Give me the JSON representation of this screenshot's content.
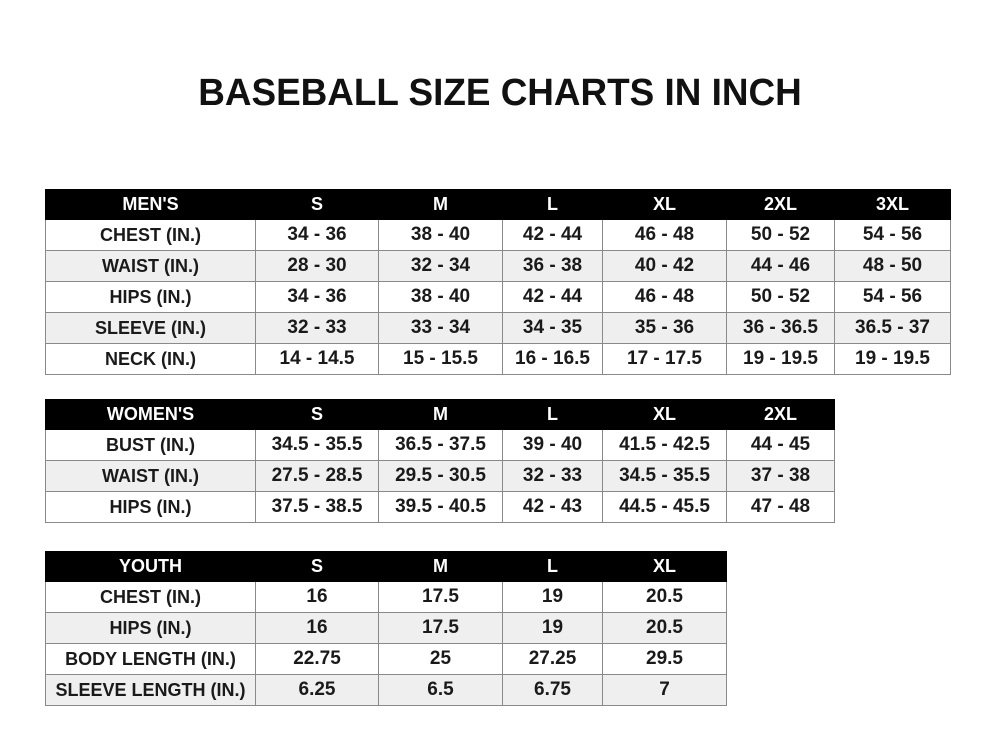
{
  "title": "BASEBALL SIZE CHARTS IN INCH",
  "tables": [
    {
      "id": "mens",
      "header": [
        "MEN'S",
        "S",
        "M",
        "L",
        "XL",
        "2XL",
        "3XL"
      ],
      "rows": [
        [
          "CHEST (IN.)",
          "34 - 36",
          "38 - 40",
          "42 - 44",
          "46 - 48",
          "50 - 52",
          "54 - 56"
        ],
        [
          "WAIST (IN.)",
          "28 - 30",
          "32 - 34",
          "36 - 38",
          "40 - 42",
          "44 - 46",
          "48 - 50"
        ],
        [
          "HIPS (IN.)",
          "34 - 36",
          "38 - 40",
          "42 - 44",
          "46 - 48",
          "50 - 52",
          "54 - 56"
        ],
        [
          "SLEEVE (IN.)",
          "32 - 33",
          "33 - 34",
          "34 - 35",
          "35 - 36",
          "36 - 36.5",
          "36.5 - 37"
        ],
        [
          "NECK (IN.)",
          "14 - 14.5",
          "15 - 15.5",
          "16 - 16.5",
          "17 - 17.5",
          "19 - 19.5",
          "19 - 19.5"
        ]
      ]
    },
    {
      "id": "womens",
      "header": [
        "WOMEN'S",
        "S",
        "M",
        "L",
        "XL",
        "2XL"
      ],
      "rows": [
        [
          "BUST (IN.)",
          "34.5 - 35.5",
          "36.5 - 37.5",
          "39 - 40",
          "41.5 - 42.5",
          "44 - 45"
        ],
        [
          "WAIST (IN.)",
          "27.5 - 28.5",
          "29.5 - 30.5",
          "32 - 33",
          "34.5 - 35.5",
          "37 - 38"
        ],
        [
          "HIPS (IN.)",
          "37.5 - 38.5",
          "39.5 - 40.5",
          "42 - 43",
          "44.5 - 45.5",
          "47 - 48"
        ]
      ]
    },
    {
      "id": "youth",
      "header": [
        "YOUTH",
        "S",
        "M",
        "L",
        "XL"
      ],
      "rows": [
        [
          "CHEST (IN.)",
          "16",
          "17.5",
          "19",
          "20.5"
        ],
        [
          "HIPS (IN.)",
          "16",
          "17.5",
          "19",
          "20.5"
        ],
        [
          "BODY LENGTH (IN.)",
          "22.75",
          "25",
          "27.25",
          "29.5"
        ],
        [
          "SLEEVE LENGTH (IN.)",
          "6.25",
          "6.5",
          "6.75",
          "7"
        ]
      ]
    }
  ]
}
